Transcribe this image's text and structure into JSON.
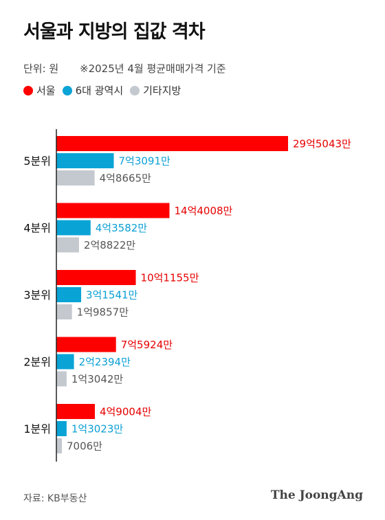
{
  "header": {
    "title": "서울과 지방의 집값 격차",
    "unit": "단위: 원",
    "note": "※2025년 4월 평균매매가격 기준"
  },
  "footer": {
    "source": "자료: KB부동산",
    "brand": "The JoongAng"
  },
  "chart_data": {
    "type": "bar",
    "orientation": "horizontal",
    "categories": [
      "5분위",
      "4분위",
      "3분위",
      "2분위",
      "1분위"
    ],
    "series": [
      {
        "name": "서울",
        "color": "#ff0000",
        "values": [
          2950430000,
          1440080000,
          1011550000,
          759240000,
          490040000
        ],
        "labels": [
          "29억5043만",
          "14억4008만",
          "10억1155만",
          "7억5924만",
          "4억9004만"
        ]
      },
      {
        "name": "6대 광역시",
        "color": "#0aa3d6",
        "values": [
          730910000,
          435820000,
          315410000,
          223940000,
          130230000
        ],
        "labels": [
          "7억3091만",
          "4억3582만",
          "3억1541만",
          "2억2394만",
          "1억3023만"
        ]
      },
      {
        "name": "기타지방",
        "color": "#c4c9cf",
        "values": [
          486650000,
          288220000,
          198570000,
          130420000,
          70060000
        ],
        "labels": [
          "4억8665만",
          "2억8822만",
          "1억9857만",
          "1억3042만",
          "7006만"
        ]
      }
    ],
    "xlim": [
      0,
      2950430000
    ],
    "grid": false,
    "legend_position": "top-left"
  }
}
